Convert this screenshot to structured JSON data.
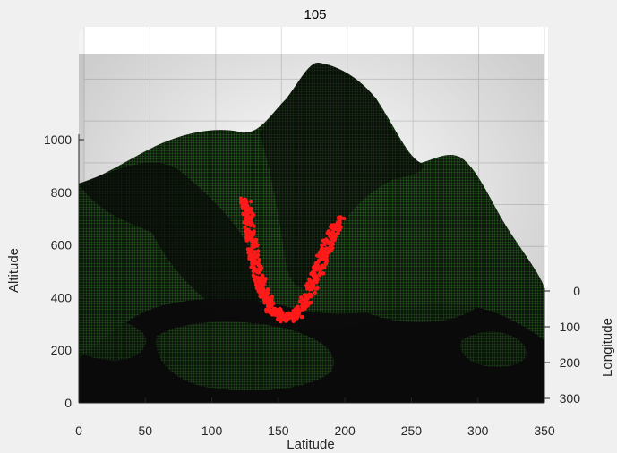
{
  "chart_data": {
    "type": "surface3d",
    "title": "105",
    "xlabel": "Latitude",
    "ylabel": "Longitude",
    "zlabel": "Altitude",
    "xlim": [
      0,
      350
    ],
    "ylim": [
      0,
      300
    ],
    "zlim": [
      0,
      1250
    ],
    "x_ticks": [
      "0",
      "50",
      "100",
      "150",
      "200",
      "250",
      "300",
      "350"
    ],
    "y_ticks": [
      "0",
      "100",
      "200",
      "300"
    ],
    "z_ticks": [
      "0",
      "200",
      "400",
      "600",
      "800",
      "1000"
    ],
    "grid": true,
    "colors": {
      "surface": "#1e4a1a",
      "surface_mesh": "#2f7a24",
      "surface_dark": "#0c0f0c",
      "points": "#ff1a1a",
      "background": "#f0f0f0",
      "axes_bg": "#ffffff",
      "grid": "#dcdcdc"
    },
    "series": [
      {
        "type": "scatter",
        "description_color": "red",
        "points": [
          {
            "x": 125,
            "z": 770
          },
          {
            "x": 128,
            "z": 700
          },
          {
            "x": 130,
            "z": 620
          },
          {
            "x": 132,
            "z": 540
          },
          {
            "x": 136,
            "z": 470
          },
          {
            "x": 140,
            "z": 410
          },
          {
            "x": 146,
            "z": 350
          },
          {
            "x": 155,
            "z": 320
          },
          {
            "x": 165,
            "z": 340
          },
          {
            "x": 172,
            "z": 400
          },
          {
            "x": 178,
            "z": 480
          },
          {
            "x": 184,
            "z": 560
          },
          {
            "x": 190,
            "z": 640
          },
          {
            "x": 196,
            "z": 700
          }
        ]
      }
    ]
  }
}
